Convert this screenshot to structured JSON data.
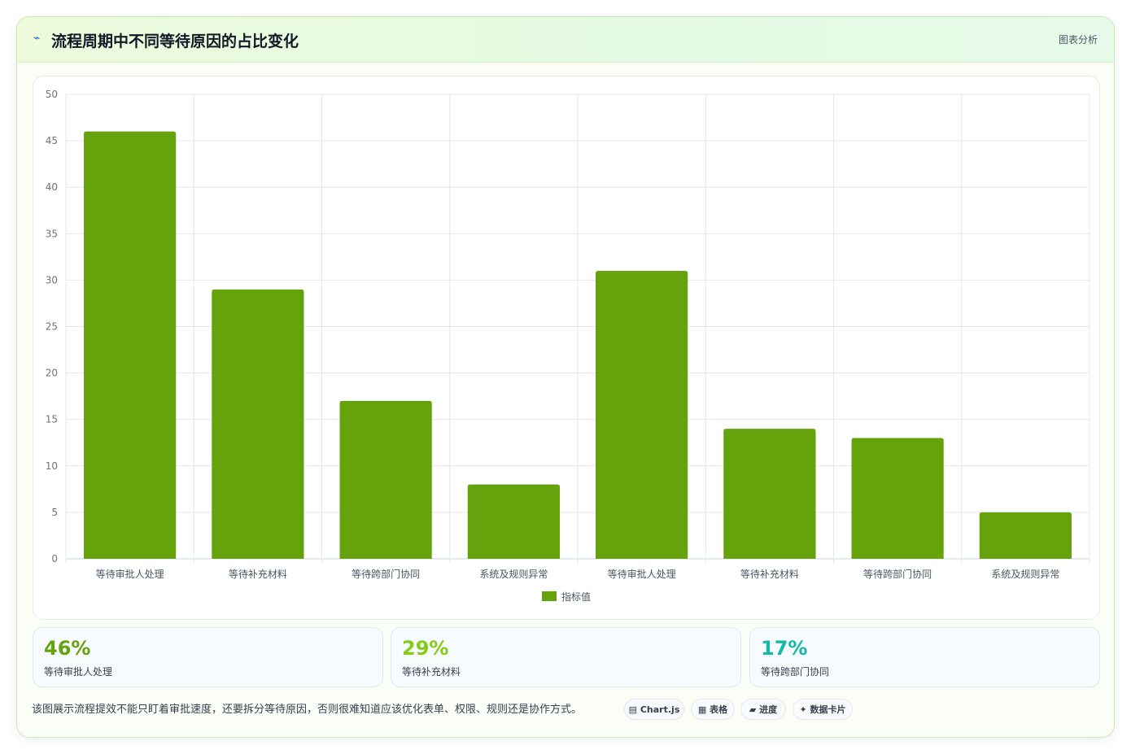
{
  "header": {
    "icon": "flash-icon",
    "title": "流程周期中不同等待原因的占比变化",
    "tag": "图表分析"
  },
  "chart_data": {
    "type": "bar",
    "categories": [
      "等待审批人处理",
      "等待补充材料",
      "等待跨部门协同",
      "系统及规则异常",
      "等待审批人处理",
      "等待补充材料",
      "等待跨部门协同",
      "系统及规则异常"
    ],
    "series": [
      {
        "name": "指标值",
        "values": [
          46,
          29,
          17,
          8,
          31,
          14,
          13,
          5
        ],
        "color": "#65a30d"
      }
    ],
    "ylim": [
      0,
      50
    ],
    "yticks": [
      0,
      5,
      10,
      15,
      20,
      25,
      30,
      35,
      40,
      45,
      50
    ],
    "grid": true,
    "legend": "bottom"
  },
  "stats": [
    {
      "value": "46%",
      "label": "等待审批人处理",
      "color": "#65a30d"
    },
    {
      "value": "29%",
      "label": "等待补充材料",
      "color": "#84cc16"
    },
    {
      "value": "17%",
      "label": "等待跨部门协同",
      "color": "#14b8a6"
    }
  ],
  "description": "该图展示流程提效不能只盯着审批速度，还要拆分等待原因，否则很难知道应该优化表单、权限、规则还是协作方式。",
  "pills": [
    {
      "icon": "chart-icon",
      "glyph": "▤",
      "label": "Chart.js"
    },
    {
      "icon": "table-icon",
      "glyph": "▦",
      "label": "表格"
    },
    {
      "icon": "progress-icon",
      "glyph": "▰",
      "label": "进度"
    },
    {
      "icon": "sparkle-icon",
      "glyph": "✦",
      "label": "数据卡片"
    }
  ]
}
